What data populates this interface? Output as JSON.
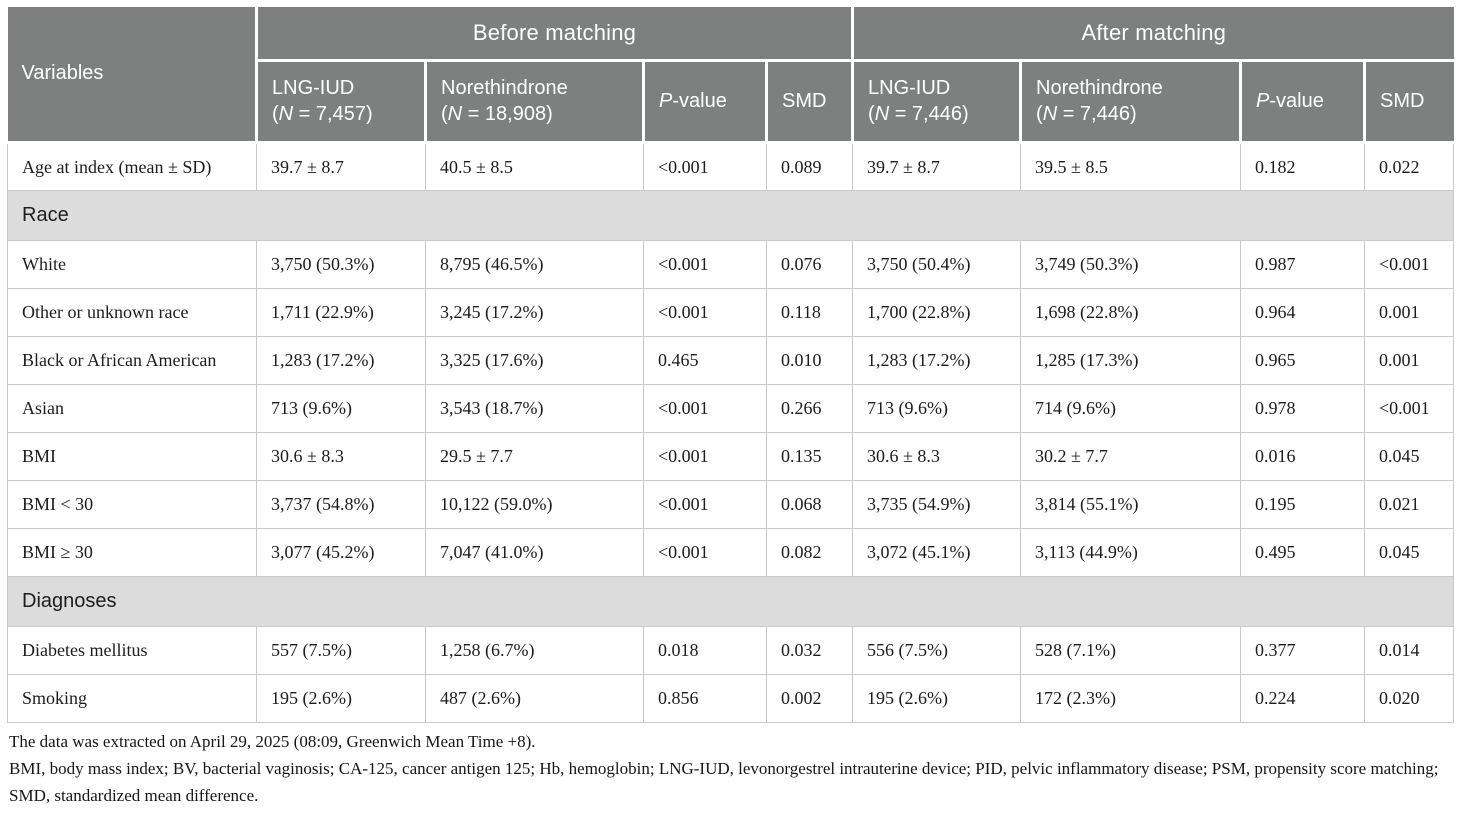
{
  "colors": {
    "header_bg": "#7e8080",
    "section_bg": "#dcdcdc",
    "border": "#c9c9c9"
  },
  "table": {
    "header": {
      "variables": "Variables",
      "before": "Before matching",
      "after": "After matching",
      "cols": [
        {
          "name": "LNG-IUD",
          "n_open": "(",
          "n_italic": "N",
          "n_rest": " = 7,457)"
        },
        {
          "name": "Norethindrone",
          "n_open": "(",
          "n_italic": "N",
          "n_rest": " = 18,908)"
        },
        {
          "p_italic": "P",
          "p_rest": "-value"
        },
        {
          "label": "SMD"
        },
        {
          "name": "LNG-IUD",
          "n_open": "(",
          "n_italic": "N",
          "n_rest": " = 7,446)"
        },
        {
          "name": "Norethindrone",
          "n_open": "(",
          "n_italic": "N",
          "n_rest": " = 7,446)"
        },
        {
          "p_italic": "P",
          "p_rest": "-value"
        },
        {
          "label": "SMD"
        }
      ]
    },
    "rows": [
      {
        "type": "data",
        "label": "Age at index (mean ± SD)",
        "values": [
          "39.7 ± 8.7",
          "40.5 ± 8.5",
          "<0.001",
          "0.089",
          "39.7 ± 8.7",
          "39.5 ± 8.5",
          "0.182",
          "0.022"
        ]
      },
      {
        "type": "section",
        "label": "Race"
      },
      {
        "type": "data",
        "label": "White",
        "values": [
          "3,750 (50.3%)",
          "8,795 (46.5%)",
          "<0.001",
          "0.076",
          "3,750 (50.4%)",
          "3,749 (50.3%)",
          "0.987",
          "<0.001"
        ]
      },
      {
        "type": "data",
        "label": "Other or unknown race",
        "values": [
          "1,711 (22.9%)",
          "3,245 (17.2%)",
          "<0.001",
          "0.118",
          "1,700 (22.8%)",
          "1,698 (22.8%)",
          "0.964",
          "0.001"
        ]
      },
      {
        "type": "data",
        "label": "Black or African American",
        "values": [
          "1,283 (17.2%)",
          "3,325 (17.6%)",
          "0.465",
          "0.010",
          "1,283 (17.2%)",
          "1,285 (17.3%)",
          "0.965",
          "0.001"
        ]
      },
      {
        "type": "data",
        "label": "Asian",
        "values": [
          "713 (9.6%)",
          "3,543 (18.7%)",
          "<0.001",
          "0.266",
          "713 (9.6%)",
          "714 (9.6%)",
          "0.978",
          "<0.001"
        ]
      },
      {
        "type": "data",
        "label": "BMI",
        "values": [
          "30.6 ± 8.3",
          "29.5 ± 7.7",
          "<0.001",
          "0.135",
          "30.6 ± 8.3",
          "30.2 ± 7.7",
          "0.016",
          "0.045"
        ]
      },
      {
        "type": "data",
        "label": "BMI < 30",
        "values": [
          "3,737 (54.8%)",
          "10,122 (59.0%)",
          "<0.001",
          "0.068",
          "3,735 (54.9%)",
          "3,814 (55.1%)",
          "0.195",
          "0.021"
        ]
      },
      {
        "type": "data",
        "label": "BMI ≥ 30",
        "values": [
          "3,077 (45.2%)",
          "7,047 (41.0%)",
          "<0.001",
          "0.082",
          "3,072 (45.1%)",
          "3,113 (44.9%)",
          "0.495",
          "0.045"
        ]
      },
      {
        "type": "section",
        "label": "Diagnoses"
      },
      {
        "type": "data",
        "label": "Diabetes mellitus",
        "values": [
          "557 (7.5%)",
          "1,258 (6.7%)",
          "0.018",
          "0.032",
          "556 (7.5%)",
          "528 (7.1%)",
          "0.377",
          "0.014"
        ]
      },
      {
        "type": "data",
        "label": "Smoking",
        "values": [
          "195 (2.6%)",
          "487 (2.6%)",
          "0.856",
          "0.002",
          "195 (2.6%)",
          "172 (2.3%)",
          "0.224",
          "0.020"
        ]
      }
    ]
  },
  "footnotes": [
    "The data was extracted on April 29, 2025 (08:09, Greenwich Mean Time +8).",
    "BMI, body mass index; BV, bacterial vaginosis; CA-125, cancer antigen 125; Hb, hemoglobin; LNG-IUD, levonorgestrel intrauterine device; PID, pelvic inflammatory disease; PSM, propensity score matching; SMD, standardized mean difference."
  ]
}
